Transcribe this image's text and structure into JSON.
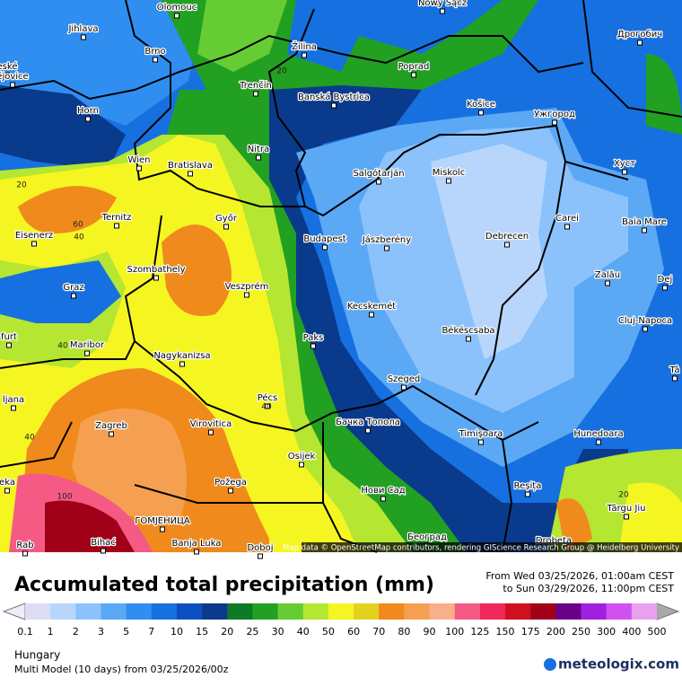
{
  "map": {
    "cities": [
      "Olomouc",
      "Nowy Sącz",
      "Jihlava",
      "eské",
      "ějovice",
      "Brno",
      "Žilina",
      "Poprad",
      "Дрогобич",
      "Trenčín",
      "Banská Bystrica",
      "Košice",
      "Ужгород",
      "Horn",
      "Nitra",
      "Wien",
      "Bratislava",
      "Salgótarján",
      "Miskolc",
      "Хуст",
      "Eisenerz",
      "Ternitz",
      "Győr",
      "Budapest",
      "Jászberény",
      "Debrecen",
      "Carei",
      "Baia Mare",
      "Szombathely",
      "Veszprém",
      "Zalău",
      "Dej",
      "Graz",
      "Kecskemét",
      "Békéscsaba",
      "Cluj-Napoca",
      "furt",
      "Maribor",
      "Paks",
      "Nagykanizsa",
      "Tâ",
      "ljana",
      "Szeged",
      "Pécs",
      "Zagreb",
      "Virovitica",
      "Бачка Топола",
      "Timișoara",
      "Hunedoara",
      "Osijek",
      "Požega",
      "eka",
      "Нови Сад",
      "Reșița",
      "Târgu Jiu",
      "ГОМЈЕНИЦА",
      "Bihać",
      "Banja Luka",
      "Doboj",
      "Београд",
      "Drobeta",
      "Rab"
    ],
    "contour_labels": [
      "20",
      "20",
      "60",
      "40",
      "40",
      "40",
      "100",
      "40",
      "20"
    ],
    "attribution": "Map data © OpenStreetMap contributors, rendering GIScience Research Group @ Heidelberg University"
  },
  "header": {
    "title": "Accumulated total precipitation (mm)",
    "from": "From Wed 03/25/2026, 01:00am CEST",
    "to": "to Sun 03/29/2026, 11:00pm CEST"
  },
  "legend": {
    "labels": [
      0.1,
      1,
      2,
      3,
      5,
      7,
      10,
      15,
      20,
      25,
      30,
      40,
      50,
      60,
      70,
      80,
      90,
      100,
      125,
      150,
      175,
      200,
      250,
      300,
      400,
      500
    ],
    "colors": [
      "#dcdcf4",
      "#b8d6fb",
      "#8cc2fb",
      "#5ba8f5",
      "#2f8ef0",
      "#1670e0",
      "#0b4fc0",
      "#0a3a8c",
      "#0f7a26",
      "#22a022",
      "#66cc33",
      "#b4e632",
      "#f5f522",
      "#e2d21e",
      "#f08a1c",
      "#f5a050",
      "#f8b08a",
      "#f55a84",
      "#f0285a",
      "#d01020",
      "#a00018",
      "#6a008a",
      "#a020e0",
      "#d050f0",
      "#e8a0f0"
    ],
    "below_color": "#eeeefa",
    "above_color": "#a8a8a8"
  },
  "footer": {
    "region": "Hungary",
    "model": "Multi Model (10 days) from 03/25/2026/00z",
    "logo": "meteologix.com"
  }
}
